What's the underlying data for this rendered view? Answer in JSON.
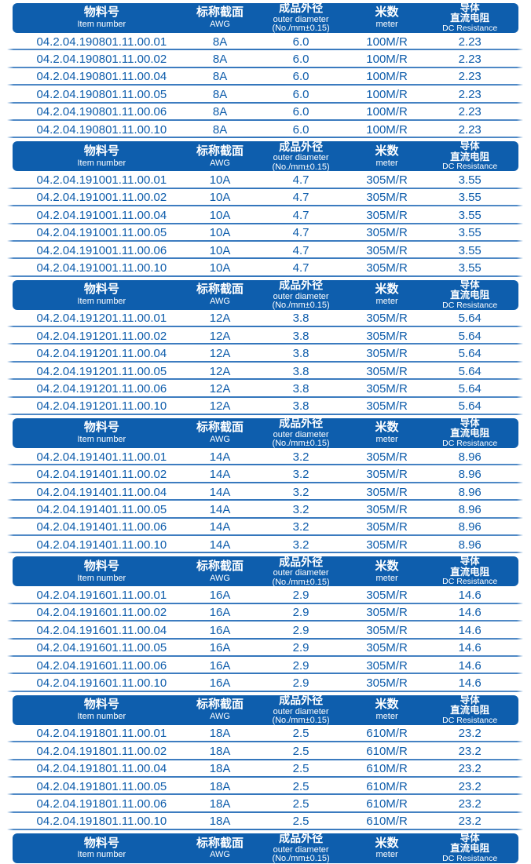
{
  "palette": {
    "page_bg": "#ffffff",
    "header_bg": "#0e5ead",
    "header_text": "#ffffff",
    "row_text": "#0d5cab",
    "divider": "#3275bc"
  },
  "table": {
    "header": {
      "item_number_zh": "物料号",
      "item_number_en": "Item number",
      "awg_zh": "标称截面",
      "awg_en": "AWG",
      "outer_diameter_zh": "成品外径",
      "outer_diameter_en": "outer diameter",
      "outer_diameter_note": "(No./mm±0.15)",
      "meter_zh": "米数",
      "meter_en": "meter",
      "dc_resistance_zh1": "导体",
      "dc_resistance_zh2": "直流电阻",
      "dc_resistance_en": "DC Resistance"
    },
    "sections": [
      {
        "awg": "8A",
        "outer_diameter": "6.0",
        "meter": "100M/R",
        "dc_resistance": "2.23",
        "items": [
          "04.2.04.190801.11.00.01",
          "04.2.04.190801.11.00.02",
          "04.2.04.190801.11.00.04",
          "04.2.04.190801.11.00.05",
          "04.2.04.190801.11.00.06",
          "04.2.04.190801.11.00.10"
        ]
      },
      {
        "awg": "10A",
        "outer_diameter": "4.7",
        "meter": "305M/R",
        "dc_resistance": "3.55",
        "items": [
          "04.2.04.191001.11.00.01",
          "04.2.04.191001.11.00.02",
          "04.2.04.191001.11.00.04",
          "04.2.04.191001.11.00.05",
          "04.2.04.191001.11.00.06",
          "04.2.04.191001.11.00.10"
        ]
      },
      {
        "awg": "12A",
        "outer_diameter": "3.8",
        "meter": "305M/R",
        "dc_resistance": "5.64",
        "items": [
          "04.2.04.191201.11.00.01",
          "04.2.04.191201.11.00.02",
          "04.2.04.191201.11.00.04",
          "04.2.04.191201.11.00.05",
          "04.2.04.191201.11.00.06",
          "04.2.04.191201.11.00.10"
        ]
      },
      {
        "awg": "14A",
        "outer_diameter": "3.2",
        "meter": "305M/R",
        "dc_resistance": "8.96",
        "items": [
          "04.2.04.191401.11.00.01",
          "04.2.04.191401.11.00.02",
          "04.2.04.191401.11.00.04",
          "04.2.04.191401.11.00.05",
          "04.2.04.191401.11.00.06",
          "04.2.04.191401.11.00.10"
        ]
      },
      {
        "awg": "16A",
        "outer_diameter": "2.9",
        "meter": "305M/R",
        "dc_resistance": "14.6",
        "items": [
          "04.2.04.191601.11.00.01",
          "04.2.04.191601.11.00.02",
          "04.2.04.191601.11.00.04",
          "04.2.04.191601.11.00.05",
          "04.2.04.191601.11.00.06",
          "04.2.04.191601.11.00.10"
        ]
      },
      {
        "awg": "18A",
        "outer_diameter": "2.5",
        "meter": "610M/R",
        "dc_resistance": "23.2",
        "items": [
          "04.2.04.191801.11.00.01",
          "04.2.04.191801.11.00.02",
          "04.2.04.191801.11.00.04",
          "04.2.04.191801.11.00.05",
          "04.2.04.191801.11.00.06",
          "04.2.04.191801.11.00.10"
        ]
      }
    ],
    "trailing_partial_header": true
  }
}
